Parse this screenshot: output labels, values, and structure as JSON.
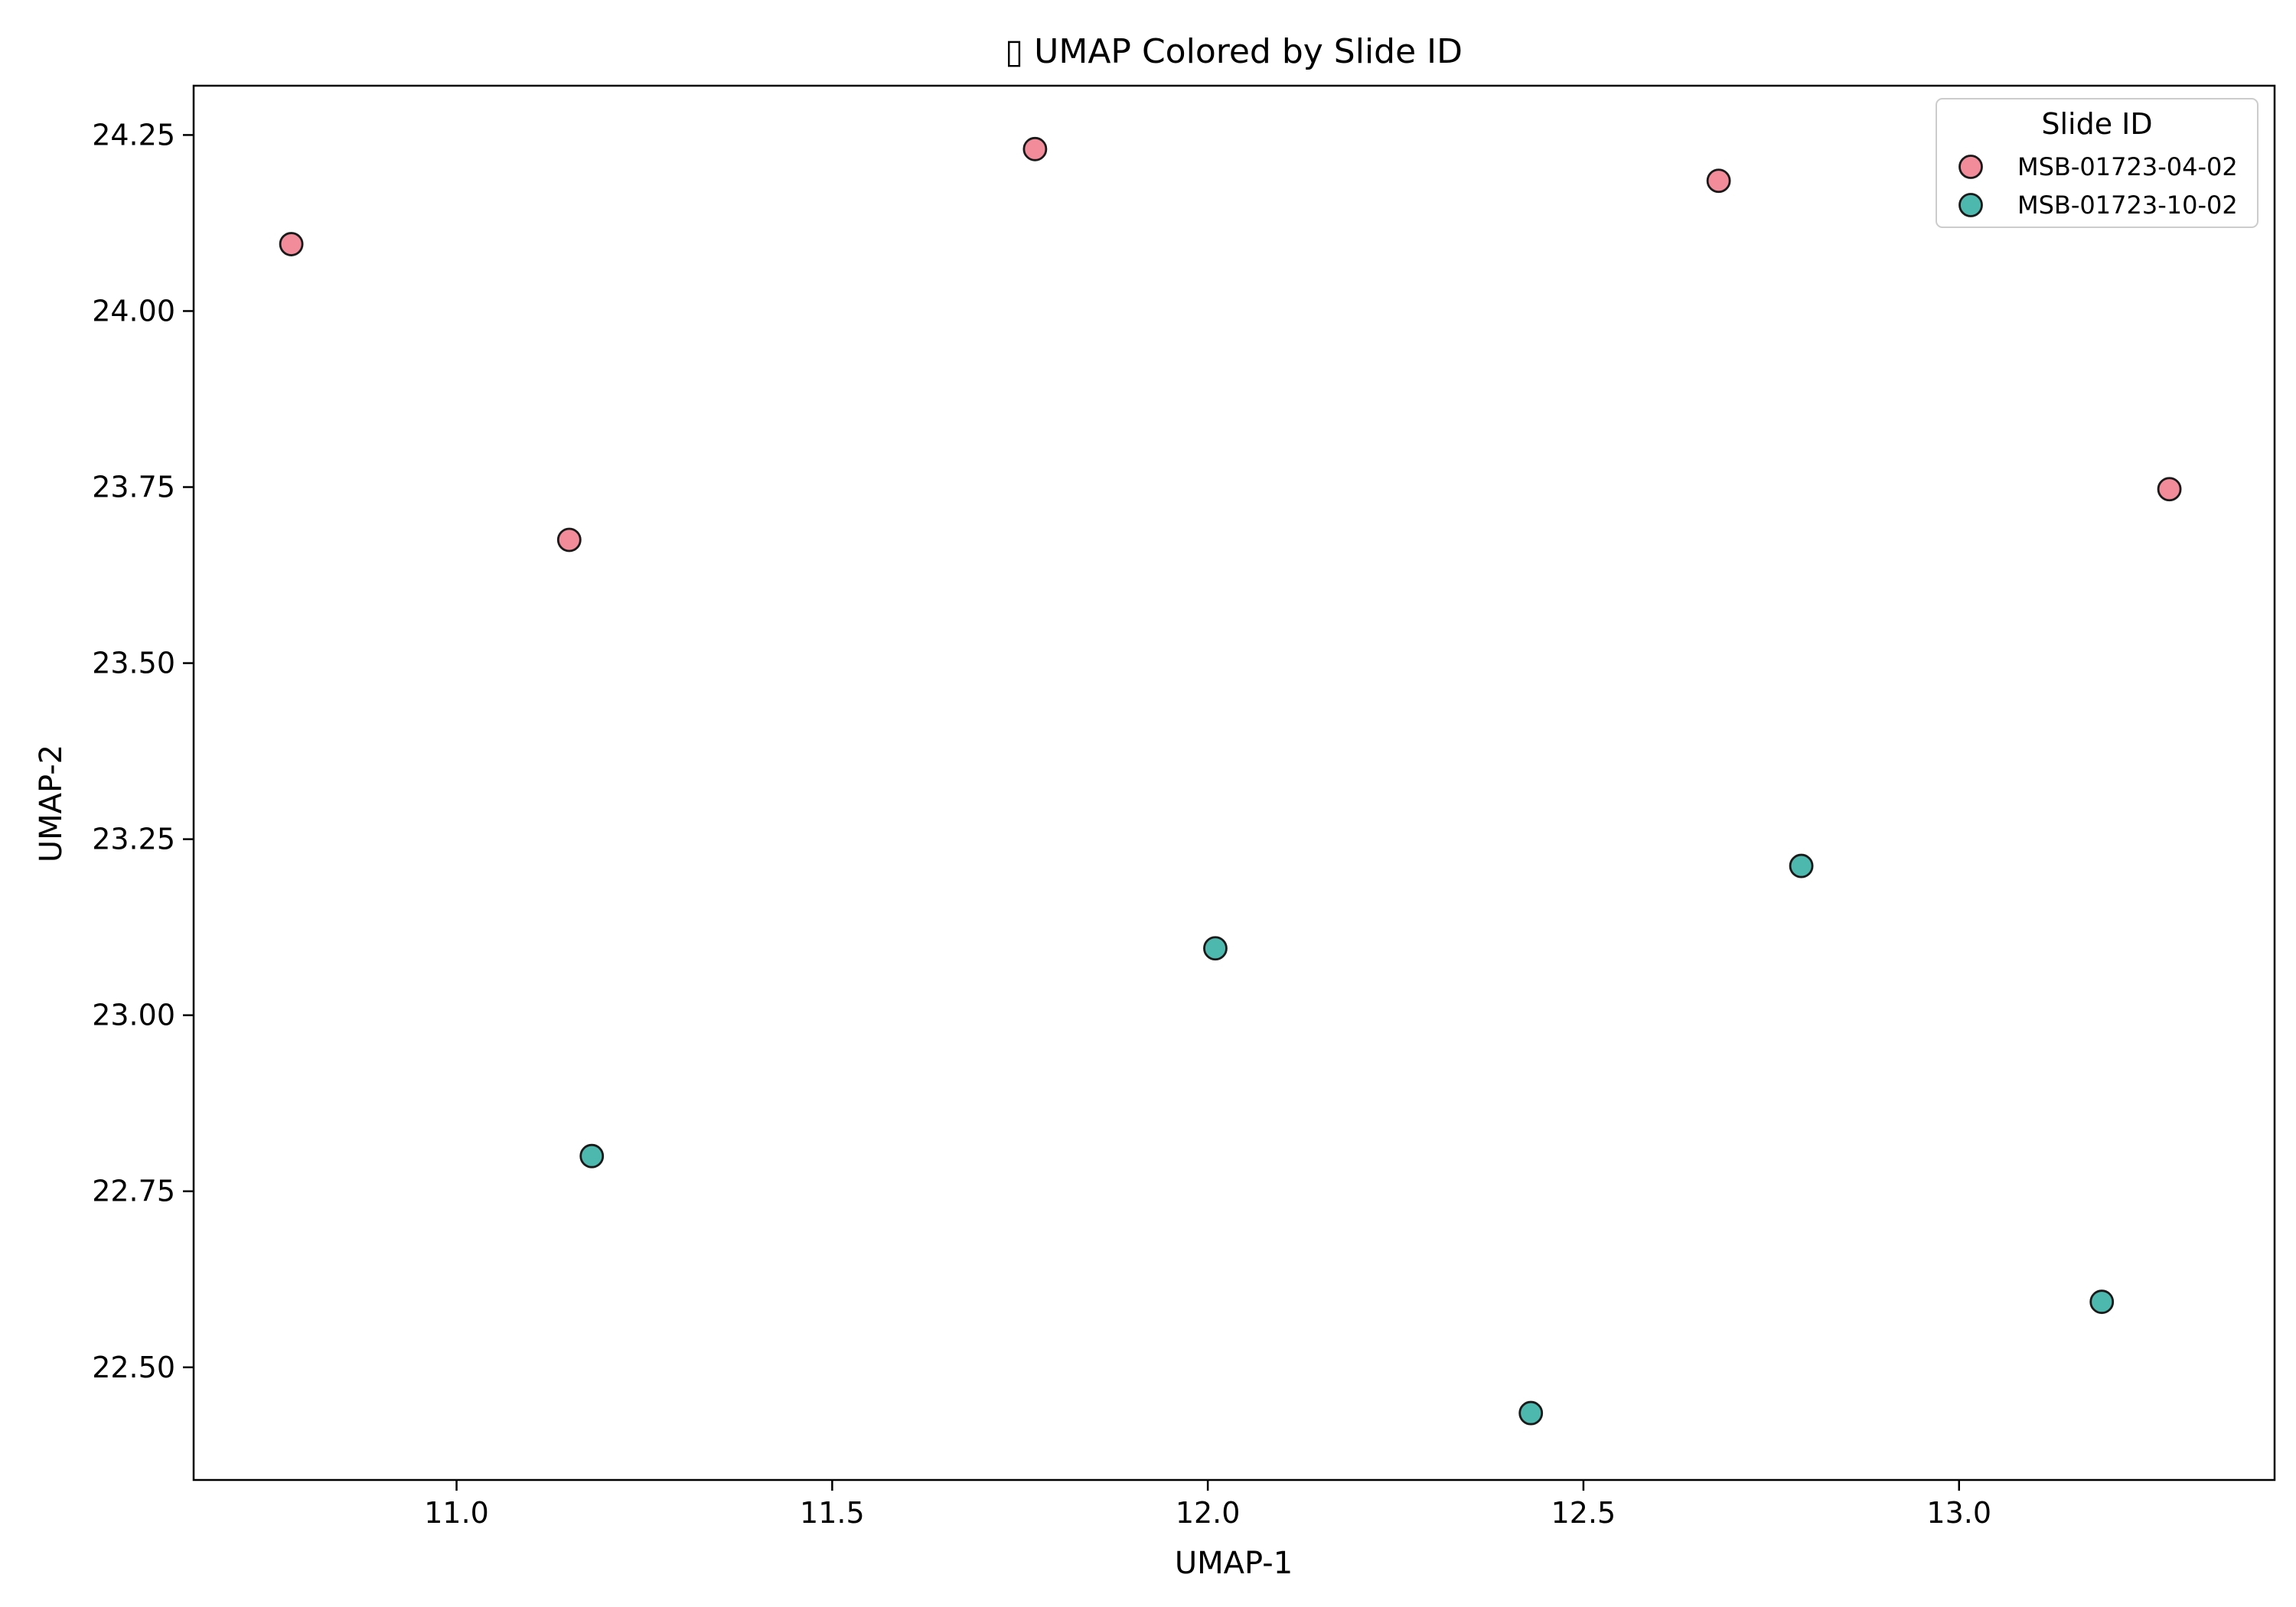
{
  "chart_data": {
    "type": "scatter",
    "title": "▯ UMAP Colored by Slide ID",
    "xlabel": "UMAP-1",
    "ylabel": "UMAP-2",
    "xlim": [
      10.65,
      13.42
    ],
    "ylim": [
      22.34,
      24.32
    ],
    "x_ticks": [
      11.0,
      11.5,
      12.0,
      12.5,
      13.0
    ],
    "x_tick_labels": [
      "11.0",
      "11.5",
      "12.0",
      "12.5",
      "13.0"
    ],
    "y_ticks": [
      22.5,
      22.75,
      23.0,
      23.25,
      23.5,
      23.75,
      24.0,
      24.25
    ],
    "y_tick_labels": [
      "22.50",
      "22.75",
      "23.00",
      "23.25",
      "23.50",
      "23.75",
      "24.00",
      "24.25"
    ],
    "grid": false,
    "legend": {
      "title": "Slide ID",
      "placement": "top-right"
    },
    "series": [
      {
        "name": "MSB-01723-04-02",
        "color": "#f28b9a",
        "points": [
          {
            "x": 10.78,
            "y": 24.095
          },
          {
            "x": 11.15,
            "y": 23.675
          },
          {
            "x": 11.77,
            "y": 24.23
          },
          {
            "x": 12.68,
            "y": 24.185
          },
          {
            "x": 13.28,
            "y": 23.747
          }
        ]
      },
      {
        "name": "MSB-01723-10-02",
        "color": "#4db8ad",
        "points": [
          {
            "x": 11.18,
            "y": 22.8
          },
          {
            "x": 12.01,
            "y": 23.095
          },
          {
            "x": 12.43,
            "y": 22.435
          },
          {
            "x": 12.79,
            "y": 23.212
          },
          {
            "x": 13.19,
            "y": 22.593
          }
        ]
      }
    ],
    "marker_edge_color": "#1a1a1a",
    "axis_color": "#000000"
  }
}
